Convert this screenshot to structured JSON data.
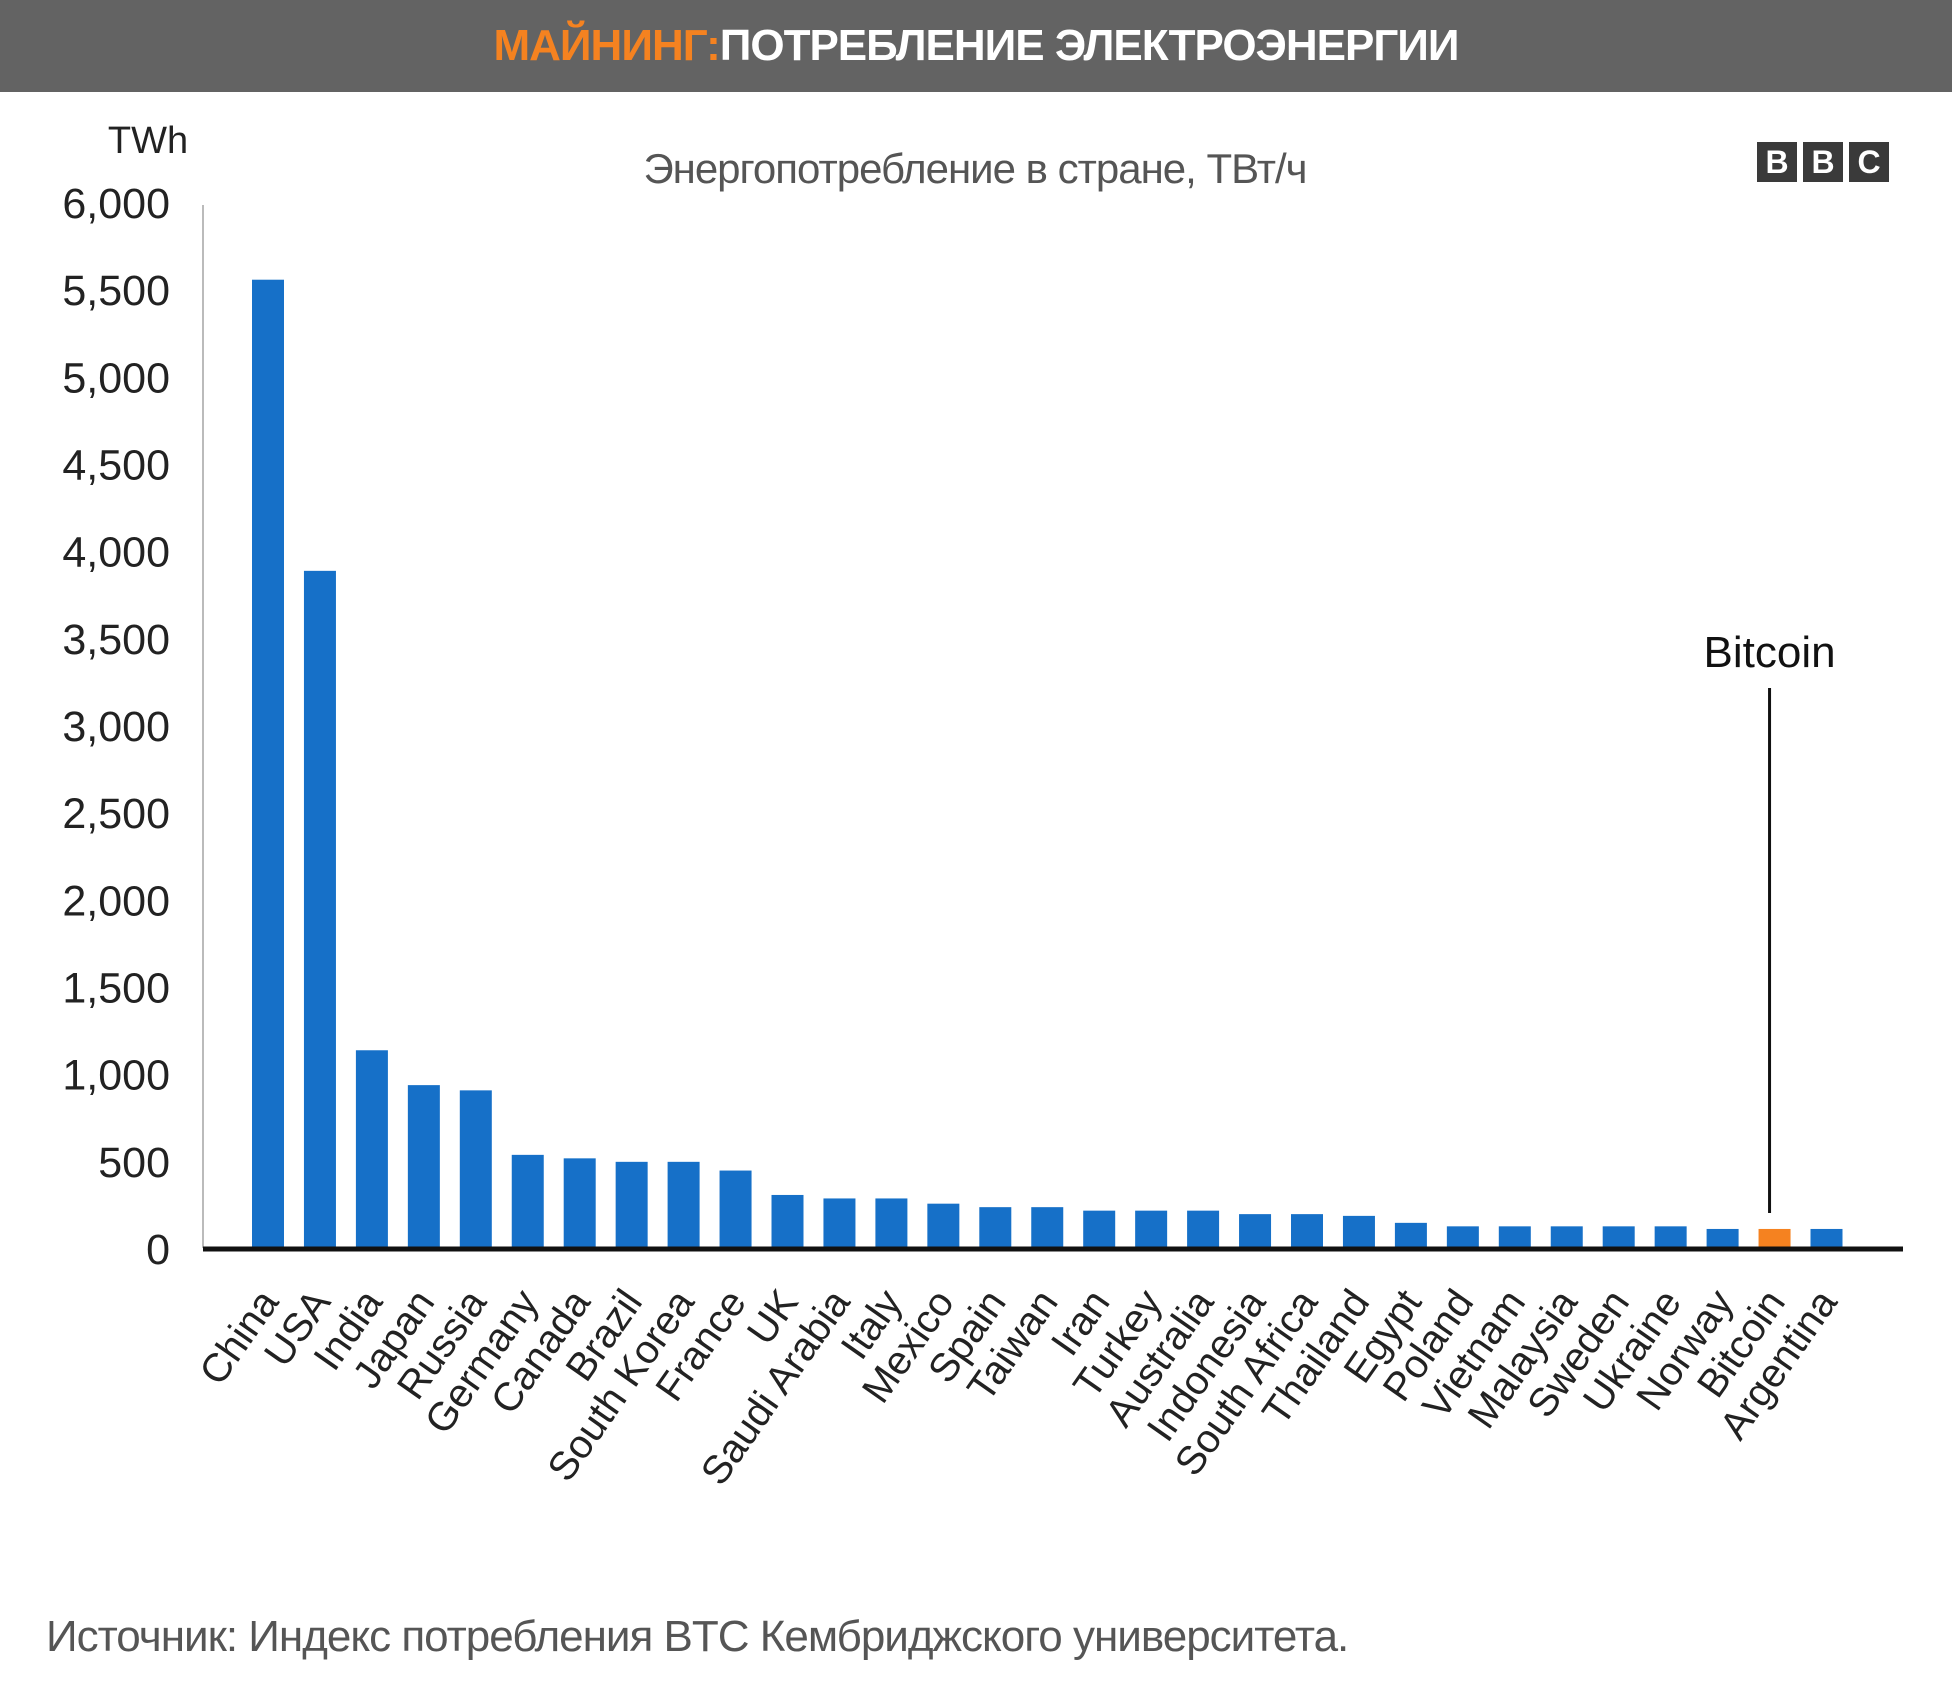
{
  "header": {
    "title_accent": "МАЙНИНГ:",
    "title_main": " ПОТРЕБЛЕНИЕ ЭЛЕКТРОЭНЕРГИИ"
  },
  "logo": {
    "letters": [
      "B",
      "B",
      "C"
    ]
  },
  "source": "Источник: Индекс потребления BTC Кембриджского университета.",
  "colors": {
    "bar": "#1670c8",
    "highlight": "#f58220",
    "banner": "#636363"
  },
  "chart_data": {
    "type": "bar",
    "title": "Энергопотребление в стране, ТВт/ч",
    "ylabel": "TWh",
    "xlabel": "",
    "ylim": [
      0,
      6000
    ],
    "yticks": [
      "0",
      "500",
      "1,000",
      "1,500",
      "2,000",
      "2,500",
      "3,000",
      "3,500",
      "4,000",
      "4,500",
      "5,000",
      "5,500",
      "6,000"
    ],
    "ytick_values": [
      0,
      500,
      1000,
      1500,
      2000,
      2500,
      3000,
      3500,
      4000,
      4500,
      5000,
      5500,
      6000
    ],
    "categories": [
      "China",
      "USA",
      "India",
      "Japan",
      "Russia",
      "Germany",
      "Canada",
      "Brazil",
      "South Korea",
      "France",
      "UK",
      "Saudi Arabia",
      "Italy",
      "Mexico",
      "Spain",
      "Taiwan",
      "Iran",
      "Turkey",
      "Australia",
      "Indonesia",
      "South Africa",
      "Thailand",
      "Egypt",
      "Poland",
      "Vietnam",
      "Malaysia",
      "Sweden",
      "Ukraine",
      "Norway",
      "Bitcoin",
      "Argentina"
    ],
    "values": [
      5560,
      3890,
      1140,
      940,
      910,
      540,
      520,
      500,
      500,
      450,
      310,
      290,
      290,
      260,
      240,
      240,
      220,
      220,
      220,
      200,
      200,
      190,
      150,
      130,
      130,
      130,
      130,
      130,
      115,
      115,
      115
    ],
    "highlight_category": "Bitcoin",
    "annotation": "Bitcoin",
    "grid": false
  }
}
